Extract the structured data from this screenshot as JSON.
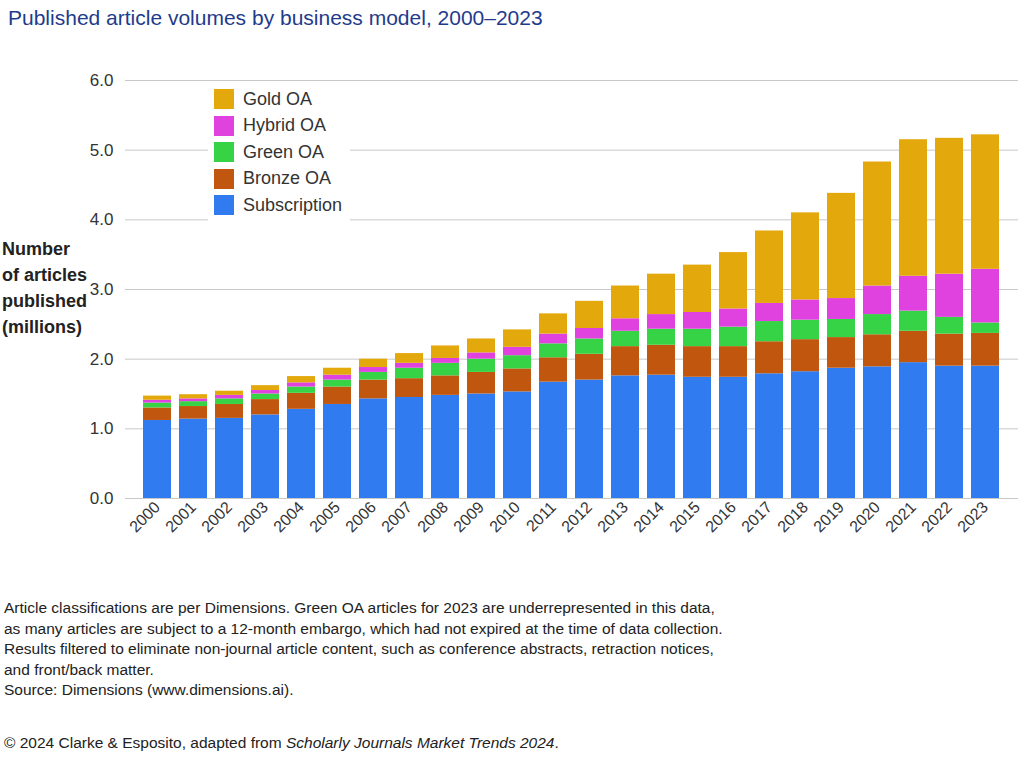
{
  "chart_data": {
    "type": "bar",
    "title": "Published article volumes by business model, 2000–2023",
    "y_label": [
      "Number",
      "of articles",
      "published",
      "(millions)"
    ],
    "categories": [
      "2000",
      "2001",
      "2002",
      "2003",
      "2004",
      "2005",
      "2006",
      "2007",
      "2008",
      "2009",
      "2010",
      "2011",
      "2012",
      "2013",
      "2014",
      "2015",
      "2016",
      "2017",
      "2018",
      "2019",
      "2020",
      "2021",
      "2022",
      "2023"
    ],
    "series": [
      {
        "name": "Subscription",
        "color": "#2f7bef",
        "values": [
          1.12,
          1.14,
          1.15,
          1.2,
          1.28,
          1.35,
          1.43,
          1.45,
          1.48,
          1.5,
          1.53,
          1.67,
          1.7,
          1.76,
          1.77,
          1.74,
          1.74,
          1.79,
          1.82,
          1.87,
          1.89,
          1.95,
          1.9,
          1.9
        ]
      },
      {
        "name": "Bronze OA",
        "color": "#c1570f",
        "values": [
          0.18,
          0.18,
          0.2,
          0.22,
          0.23,
          0.25,
          0.27,
          0.27,
          0.28,
          0.31,
          0.33,
          0.35,
          0.37,
          0.42,
          0.43,
          0.44,
          0.44,
          0.46,
          0.46,
          0.44,
          0.46,
          0.45,
          0.46,
          0.47
        ]
      },
      {
        "name": "Green OA",
        "color": "#35d345",
        "values": [
          0.07,
          0.07,
          0.08,
          0.08,
          0.09,
          0.1,
          0.11,
          0.15,
          0.18,
          0.19,
          0.19,
          0.2,
          0.22,
          0.22,
          0.23,
          0.25,
          0.28,
          0.29,
          0.28,
          0.26,
          0.29,
          0.29,
          0.24,
          0.15
        ]
      },
      {
        "name": "Hybrid OA",
        "color": "#e042e0",
        "values": [
          0.04,
          0.04,
          0.05,
          0.05,
          0.06,
          0.07,
          0.07,
          0.07,
          0.07,
          0.09,
          0.12,
          0.14,
          0.15,
          0.18,
          0.21,
          0.24,
          0.26,
          0.26,
          0.29,
          0.3,
          0.41,
          0.5,
          0.62,
          0.77
        ]
      },
      {
        "name": "Gold OA",
        "color": "#e3a80c",
        "values": [
          0.06,
          0.06,
          0.06,
          0.07,
          0.09,
          0.1,
          0.12,
          0.14,
          0.18,
          0.2,
          0.25,
          0.29,
          0.39,
          0.47,
          0.58,
          0.68,
          0.81,
          1.04,
          1.25,
          1.51,
          1.78,
          1.96,
          1.95,
          1.93
        ]
      }
    ],
    "stacked": true,
    "ylim": [
      0,
      6
    ],
    "yticks": [
      0,
      1,
      2,
      3,
      4,
      5,
      6
    ],
    "grid": true,
    "legend": "top-left",
    "caption": [
      "Article classifications are per Dimensions. Green OA articles for 2023 are underrepresented in this data,",
      "as many articles are subject to a 12-month embargo, which had not expired at the time of data collection.",
      "Results filtered to eliminate non-journal article content, such as conference abstracts, retraction notices,",
      "and front/back matter.",
      "Source: Dimensions (www.dimensions.ai)."
    ],
    "footer": "© 2024 Clarke & Esposito, adapted from Scholarly Journals Market Trends 2024.",
    "footer_italic": "Scholarly Journals Market Trends 2024"
  }
}
